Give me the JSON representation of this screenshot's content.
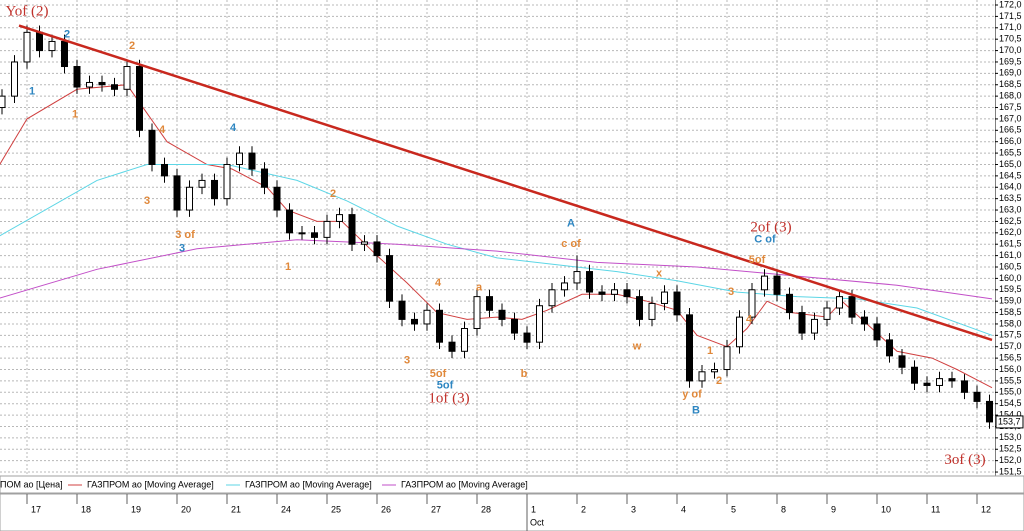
{
  "chart_data": {
    "type": "candlestick",
    "xlim": [
      -0.54,
      19.36
    ],
    "xticks": [
      {
        "value": 0,
        "label": "17"
      },
      {
        "value": 1,
        "label": "18"
      },
      {
        "value": 2,
        "label": "19"
      },
      {
        "value": 3,
        "label": "20"
      },
      {
        "value": 4,
        "label": "21"
      },
      {
        "value": 5,
        "label": "24"
      },
      {
        "value": 6,
        "label": "25"
      },
      {
        "value": 7,
        "label": "26"
      },
      {
        "value": 8,
        "label": "27"
      },
      {
        "value": 9,
        "label": "28"
      },
      {
        "value": 10,
        "label": "1"
      },
      {
        "value": 11,
        "label": "2"
      },
      {
        "value": 12,
        "label": "3"
      },
      {
        "value": 13,
        "label": "4"
      },
      {
        "value": 14,
        "label": "5"
      },
      {
        "value": 15,
        "label": "8"
      },
      {
        "value": 16,
        "label": "9"
      },
      {
        "value": 17,
        "label": "10"
      },
      {
        "value": 18,
        "label": "11"
      },
      {
        "value": 19,
        "label": "12"
      }
    ],
    "x_month": {
      "value": 10,
      "label": "Oct"
    },
    "ylim": [
      151.37,
      172.22
    ],
    "yticks": [
      {
        "value": 172.0,
        "label": "172,0"
      },
      {
        "value": 171.5,
        "label": "171,5"
      },
      {
        "value": 171.0,
        "label": "171,0"
      },
      {
        "value": 170.5,
        "label": "170,5"
      },
      {
        "value": 170.0,
        "label": "170,0"
      },
      {
        "value": 169.5,
        "label": "169,5"
      },
      {
        "value": 169.0,
        "label": "169,0"
      },
      {
        "value": 168.5,
        "label": "168,5"
      },
      {
        "value": 168.0,
        "label": "168,0"
      },
      {
        "value": 167.5,
        "label": "167,5"
      },
      {
        "value": 167.0,
        "label": "167,0"
      },
      {
        "value": 166.5,
        "label": "166,5"
      },
      {
        "value": 166.0,
        "label": "166,0"
      },
      {
        "value": 165.5,
        "label": "165,5"
      },
      {
        "value": 165.0,
        "label": "165,0"
      },
      {
        "value": 164.5,
        "label": "164,5"
      },
      {
        "value": 164.0,
        "label": "164,0"
      },
      {
        "value": 163.5,
        "label": "163,5"
      },
      {
        "value": 163.0,
        "label": "163,0"
      },
      {
        "value": 162.5,
        "label": "162,5"
      },
      {
        "value": 162.0,
        "label": "162,0"
      },
      {
        "value": 161.5,
        "label": "161,5"
      },
      {
        "value": 161.0,
        "label": "161,0"
      },
      {
        "value": 160.5,
        "label": "160,5"
      },
      {
        "value": 160.0,
        "label": "160,0"
      },
      {
        "value": 159.5,
        "label": "159,5"
      },
      {
        "value": 159.0,
        "label": "159,0"
      },
      {
        "value": 158.5,
        "label": "158,5"
      },
      {
        "value": 158.0,
        "label": "158,0"
      },
      {
        "value": 157.5,
        "label": "157,5"
      },
      {
        "value": 157.0,
        "label": "157,0"
      },
      {
        "value": 156.5,
        "label": "156,5"
      },
      {
        "value": 156.0,
        "label": "156,0"
      },
      {
        "value": 155.5,
        "label": "155,5"
      },
      {
        "value": 155.0,
        "label": "155,0"
      },
      {
        "value": 154.5,
        "label": "154,5"
      },
      {
        "value": 154.0,
        "label": "154,0"
      },
      {
        "value": 153.5,
        "label": "153,5"
      },
      {
        "value": 153.0,
        "label": "153,0"
      },
      {
        "value": 152.5,
        "label": "152,5"
      },
      {
        "value": 152.0,
        "label": "152,0"
      },
      {
        "value": 151.5,
        "label": "151,5"
      }
    ],
    "grid": true,
    "series": [
      {
        "name": "ПОМ ао [Цена]",
        "color": "#000000",
        "x": [
          -0.5,
          -0.25,
          0,
          0.25,
          0.5,
          0.75,
          1,
          1.25,
          1.5,
          1.75,
          2,
          2.25,
          2.5,
          2.75,
          3,
          3.25,
          3.5,
          3.75,
          4,
          4.25,
          4.5,
          4.75,
          5,
          5.25,
          5.5,
          5.75,
          6,
          6.25,
          6.5,
          6.75,
          7,
          7.25,
          7.5,
          7.75,
          8,
          8.25,
          8.5,
          8.75,
          9,
          9.25,
          9.5,
          9.75,
          10,
          10.25,
          10.5,
          10.75,
          11,
          11.25,
          11.5,
          11.75,
          12,
          12.25,
          12.5,
          12.75,
          13,
          13.25,
          13.5,
          13.75,
          14,
          14.25,
          14.5,
          14.75,
          15,
          15.25,
          15.5,
          15.75,
          16,
          16.25,
          16.5,
          16.75,
          17,
          17.25,
          17.5,
          17.75,
          18,
          18.25,
          18.5,
          18.75,
          19,
          19.25
        ],
        "open": [
          167.5,
          168.0,
          169.5,
          170.8,
          170.0,
          170.4,
          169.3,
          168.4,
          168.6,
          168.5,
          168.3,
          169.3,
          166.5,
          165.0,
          164.5,
          163.0,
          164.0,
          164.3,
          163.5,
          165.0,
          165.5,
          164.8,
          164.0,
          163.0,
          162.0,
          162.0,
          161.8,
          162.5,
          162.8,
          161.5,
          161.6,
          161.0,
          159.0,
          158.2,
          158.0,
          158.6,
          157.2,
          156.8,
          157.8,
          159.2,
          158.6,
          158.2,
          157.6,
          157.2,
          158.8,
          159.5,
          159.8,
          160.3,
          159.4,
          159.3,
          159.5,
          159.2,
          158.2,
          158.9,
          159.4,
          158.4,
          155.5,
          155.9,
          156.0,
          157.0,
          158.3,
          159.5,
          160.1,
          159.3,
          158.5,
          157.6,
          158.2,
          158.7,
          159.2,
          158.3,
          158.0,
          157.3,
          156.6,
          156.1,
          155.4,
          155.3,
          155.6,
          155.5,
          155.0,
          154.6
        ],
        "high": [
          168.3,
          169.8,
          171.1,
          171.1,
          170.7,
          170.7,
          169.6,
          168.9,
          168.9,
          168.8,
          169.6,
          169.6,
          166.8,
          165.3,
          164.8,
          164.3,
          164.6,
          164.6,
          165.3,
          165.8,
          165.8,
          165.1,
          164.3,
          163.3,
          162.3,
          162.3,
          162.8,
          163.1,
          163.1,
          161.9,
          161.9,
          161.3,
          159.3,
          158.5,
          158.9,
          158.9,
          157.5,
          158.1,
          159.5,
          159.5,
          158.9,
          158.5,
          157.9,
          159.1,
          159.8,
          160.1,
          161.0,
          160.6,
          159.7,
          159.8,
          159.8,
          159.5,
          159.2,
          159.7,
          159.7,
          158.7,
          156.2,
          156.3,
          157.3,
          158.6,
          159.8,
          160.4,
          160.4,
          159.6,
          158.8,
          158.5,
          159.0,
          159.5,
          159.5,
          158.6,
          158.3,
          157.6,
          156.9,
          156.4,
          155.7,
          155.9,
          155.9,
          155.8,
          155.3,
          154.9
        ],
        "low": [
          167.2,
          167.7,
          169.2,
          169.7,
          169.7,
          169.0,
          168.1,
          168.1,
          168.2,
          168.0,
          168.0,
          166.2,
          164.7,
          164.2,
          162.7,
          162.7,
          163.7,
          163.2,
          163.2,
          164.7,
          164.5,
          163.7,
          162.7,
          161.7,
          161.7,
          161.5,
          161.5,
          162.2,
          161.2,
          161.2,
          160.7,
          158.7,
          157.9,
          157.7,
          157.7,
          156.9,
          156.5,
          156.5,
          157.5,
          158.3,
          157.9,
          157.3,
          156.9,
          156.9,
          158.5,
          159.2,
          159.5,
          159.1,
          159.0,
          159.0,
          158.9,
          157.9,
          157.9,
          158.6,
          158.1,
          155.2,
          155.2,
          155.6,
          155.7,
          156.7,
          158.0,
          159.2,
          159.0,
          158.2,
          157.3,
          157.3,
          157.9,
          158.4,
          158.0,
          157.7,
          157.0,
          156.3,
          155.8,
          155.1,
          155.0,
          155.0,
          155.2,
          154.7,
          154.3,
          153.4
        ],
        "close": [
          168.0,
          169.5,
          170.8,
          170.0,
          170.4,
          169.3,
          168.4,
          168.6,
          168.5,
          168.3,
          169.3,
          166.5,
          165.0,
          164.5,
          163.0,
          164.0,
          164.3,
          163.5,
          165.0,
          165.5,
          164.8,
          164.0,
          163.0,
          162.0,
          162.0,
          161.8,
          162.5,
          162.8,
          161.5,
          161.6,
          161.0,
          159.0,
          158.2,
          158.0,
          158.6,
          157.2,
          156.8,
          157.8,
          159.2,
          158.6,
          158.2,
          157.6,
          157.2,
          158.8,
          159.5,
          159.8,
          160.3,
          159.4,
          159.3,
          159.5,
          159.2,
          158.2,
          158.9,
          159.4,
          158.4,
          155.5,
          155.9,
          156.0,
          157.0,
          158.3,
          159.5,
          160.1,
          159.3,
          158.5,
          157.6,
          158.2,
          158.7,
          159.2,
          158.3,
          158.0,
          157.3,
          156.6,
          156.1,
          155.4,
          155.3,
          155.6,
          155.5,
          155.0,
          154.6,
          153.7
        ]
      },
      {
        "name": "ГАЗПРОМ ао [Moving Average]",
        "color": "#d04040",
        "x": [
          -0.6,
          0,
          1,
          2,
          2.8,
          3.6,
          4.1,
          4.8,
          5.2,
          5.8,
          6.3,
          7,
          7.6,
          8.2,
          8.8,
          9.4,
          9.9,
          10.4,
          11.1,
          11.8,
          12.4,
          13,
          13.4,
          14,
          14.4,
          14.8,
          15.3,
          16,
          16.3,
          16.8,
          17.4,
          18.1,
          18.6,
          19.3
        ],
        "values": [
          164.8,
          167.0,
          168.3,
          168.5,
          166.0,
          165.0,
          164.8,
          164.0,
          163.0,
          162.5,
          162.5,
          161.0,
          159.8,
          158.5,
          158.2,
          158.3,
          158.2,
          158.6,
          159.3,
          159.3,
          159.0,
          158.6,
          157.5,
          157.0,
          157.8,
          159.0,
          158.5,
          158.3,
          159.0,
          158.0,
          156.8,
          156.5,
          156.0,
          155.2
        ]
      },
      {
        "name": "ГАЗПРОМ ао [Moving Average]",
        "color": "#5cd6e6",
        "x": [
          -0.6,
          1.4,
          2.4,
          4.0,
          5.4,
          6.4,
          7.4,
          8.4,
          9.4,
          10.6,
          11.8,
          13.0,
          14.2,
          15.4,
          16.6,
          17.8,
          19.3
        ],
        "values": [
          161.8,
          164.3,
          165.0,
          165.0,
          164.3,
          163.4,
          162.3,
          161.5,
          160.9,
          160.6,
          160.3,
          159.9,
          159.4,
          159.2,
          159.1,
          158.7,
          157.5
        ]
      },
      {
        "name": "ГАЗПРОМ ао [Moving Average]",
        "color": "#c24fc8",
        "x": [
          -0.6,
          1.4,
          3.4,
          5.4,
          7.4,
          9.4,
          11.4,
          13.4,
          15.4,
          17.4,
          19.3
        ],
        "values": [
          159.1,
          160.4,
          161.3,
          161.7,
          161.5,
          161.2,
          160.7,
          160.5,
          160.1,
          159.7,
          159.1
        ]
      }
    ],
    "trendline": {
      "color": "#c8281e",
      "x": [
        -0.16,
        19.3
      ],
      "values": [
        171.1,
        157.3
      ]
    },
    "annotations": [
      {
        "text": "Yof (2)",
        "x": 0,
        "y": 171.7,
        "color": "#c0302a"
      },
      {
        "text": "2",
        "x": 0.8,
        "y": 170.7,
        "color": "#2e86c1"
      },
      {
        "text": "1",
        "x": 0.1,
        "y": 168.2,
        "color": "#2e86c1"
      },
      {
        "text": "1",
        "x": 0.96,
        "y": 167.2,
        "color": "#e0883a"
      },
      {
        "text": "2",
        "x": 2.1,
        "y": 170.2,
        "color": "#e0883a"
      },
      {
        "text": "4",
        "x": 2.7,
        "y": 166.5,
        "color": "#e0883a"
      },
      {
        "text": "3",
        "x": 2.4,
        "y": 163.4,
        "color": "#e0883a"
      },
      {
        "text": "3 of",
        "x": 3.16,
        "y": 161.9,
        "color": "#e0883a"
      },
      {
        "text": "3",
        "x": 3.1,
        "y": 161.3,
        "color": "#2e86c1"
      },
      {
        "text": "4",
        "x": 4.12,
        "y": 166.6,
        "color": "#2e86c1"
      },
      {
        "text": "1",
        "x": 5.22,
        "y": 160.5,
        "color": "#e0883a"
      },
      {
        "text": "2",
        "x": 6.12,
        "y": 163.7,
        "color": "#e0883a"
      },
      {
        "text": "4",
        "x": 8.22,
        "y": 159.8,
        "color": "#e0883a"
      },
      {
        "text": "3",
        "x": 7.6,
        "y": 156.4,
        "color": "#e0883a"
      },
      {
        "text": "5of",
        "x": 8.22,
        "y": 155.8,
        "color": "#e0883a"
      },
      {
        "text": "5of",
        "x": 8.36,
        "y": 155.3,
        "color": "#2e86c1"
      },
      {
        "text": "1of (3)",
        "x": 8.44,
        "y": 154.7,
        "color": "#c0302a"
      },
      {
        "text": "a",
        "x": 9.04,
        "y": 159.6,
        "color": "#e0883a"
      },
      {
        "text": "b",
        "x": 9.94,
        "y": 155.8,
        "color": "#e0883a"
      },
      {
        "text": "A",
        "x": 10.88,
        "y": 162.4,
        "color": "#2e86c1"
      },
      {
        "text": "c of",
        "x": 10.88,
        "y": 161.5,
        "color": "#e0883a"
      },
      {
        "text": "w",
        "x": 12.2,
        "y": 157.0,
        "color": "#e0883a"
      },
      {
        "text": "x",
        "x": 12.64,
        "y": 160.2,
        "color": "#e0883a"
      },
      {
        "text": "1",
        "x": 13.66,
        "y": 156.8,
        "color": "#e0883a"
      },
      {
        "text": "2",
        "x": 13.84,
        "y": 155.5,
        "color": "#e0883a"
      },
      {
        "text": "y of",
        "x": 13.3,
        "y": 154.9,
        "color": "#e0883a"
      },
      {
        "text": "B",
        "x": 13.38,
        "y": 154.2,
        "color": "#2e86c1"
      },
      {
        "text": "3",
        "x": 14.08,
        "y": 159.4,
        "color": "#e0883a"
      },
      {
        "text": "4",
        "x": 14.44,
        "y": 158.2,
        "color": "#e0883a"
      },
      {
        "text": "5of",
        "x": 14.6,
        "y": 160.8,
        "color": "#e0883a"
      },
      {
        "text": "C of",
        "x": 14.76,
        "y": 161.7,
        "color": "#2e86c1"
      },
      {
        "text": "2of (3)",
        "x": 14.88,
        "y": 162.2,
        "color": "#c0302a"
      },
      {
        "text": "3of (3)",
        "x": 18.76,
        "y": 152.0,
        "color": "#c0302a"
      }
    ],
    "last_price": {
      "value": 153.7,
      "label": "153,7"
    }
  }
}
